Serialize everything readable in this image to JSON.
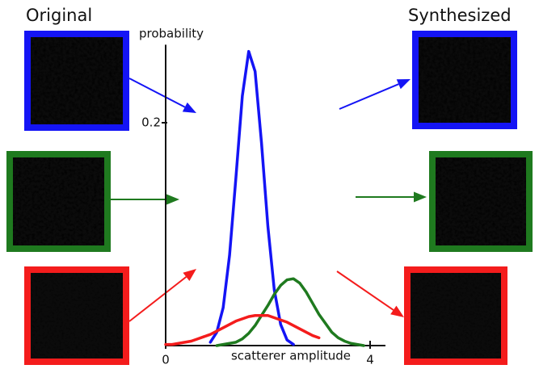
{
  "chart_data": {
    "type": "line",
    "left_heading": "Original",
    "right_heading": "Synthesized",
    "y_label": "probability",
    "x_label": "scatterer amplitude",
    "x": [
      0,
      0.125,
      0.25,
      0.375,
      0.5,
      0.625,
      0.75,
      0.875,
      1.0,
      1.125,
      1.25,
      1.375,
      1.5,
      1.625,
      1.75,
      1.875,
      2.0,
      2.125,
      2.25,
      2.375,
      2.5,
      2.625,
      2.75,
      2.875,
      3.0,
      3.125,
      3.25,
      3.375,
      3.5,
      3.625,
      3.75,
      3.875,
      4.0
    ],
    "series": [
      {
        "color": "#1414f5",
        "values": [
          null,
          null,
          null,
          null,
          null,
          null,
          null,
          0.003,
          0.012,
          0.034,
          0.081,
          0.151,
          0.224,
          0.264,
          0.246,
          0.182,
          0.107,
          0.05,
          0.019,
          0.005,
          0.001,
          null,
          null,
          null,
          null,
          null,
          null,
          null,
          null,
          null,
          null,
          null,
          null
        ]
      },
      {
        "color": "#1f7a1f",
        "values": [
          null,
          null,
          null,
          null,
          null,
          null,
          null,
          null,
          0.0,
          0.001,
          0.002,
          0.003,
          0.006,
          0.011,
          0.018,
          0.027,
          0.036,
          0.046,
          0.054,
          0.059,
          0.06,
          0.056,
          0.048,
          0.038,
          0.028,
          0.02,
          0.012,
          0.007,
          0.004,
          0.002,
          0.001,
          0.0,
          null
        ]
      },
      {
        "color": "#f41c1c",
        "values": [
          0.001,
          0.001,
          0.002,
          0.003,
          0.004,
          0.006,
          0.008,
          0.01,
          0.013,
          0.016,
          0.019,
          0.022,
          0.024,
          0.026,
          0.027,
          0.027,
          0.027,
          0.025,
          0.023,
          0.021,
          0.018,
          0.015,
          0.012,
          0.009,
          0.007,
          null,
          null,
          null,
          null,
          null,
          null,
          null,
          null
        ]
      }
    ],
    "xlim": [
      0,
      4.3
    ],
    "ylim": [
      0,
      0.27
    ],
    "xticks": [
      0,
      4
    ],
    "yticks": [
      0.2
    ]
  }
}
